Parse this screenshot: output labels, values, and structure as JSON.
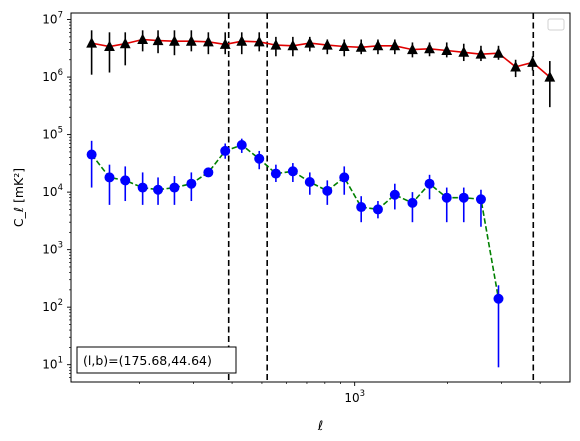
{
  "chart_data": {
    "type": "scatter",
    "title": "",
    "xlabel": "ℓ",
    "ylabel": "C_ℓ  [mK²]",
    "xscale": "log",
    "yscale": "log",
    "xlim": [
      120,
      5000
    ],
    "ylim": [
      5,
      13000000
    ],
    "x_ticks": [
      {
        "value": 1000,
        "label_base": "10",
        "label_exp": "3"
      }
    ],
    "y_ticks": [
      {
        "value": 10,
        "label_base": "10",
        "label_exp": "1"
      },
      {
        "value": 100,
        "label_base": "10",
        "label_exp": "2"
      },
      {
        "value": 1000,
        "label_base": "10",
        "label_exp": "3"
      },
      {
        "value": 10000,
        "label_base": "10",
        "label_exp": "4"
      },
      {
        "value": 100000,
        "label_base": "10",
        "label_exp": "5"
      },
      {
        "value": 1000000,
        "label_base": "10",
        "label_exp": "6"
      },
      {
        "value": 10000000,
        "label_base": "10",
        "label_exp": "7"
      }
    ],
    "vlines": [
      390,
      520,
      3800
    ],
    "legend": {
      "location": "top-right",
      "entries": []
    },
    "annotation": "(l,b)=(175.68,44.64)",
    "series": [
      {
        "marker": "triangle",
        "marker_color": "#000000",
        "errorbar_color": "#000000",
        "line_color": "#e00000",
        "line_style": "solid",
        "x": [
          140,
          160,
          180,
          205,
          230,
          260,
          295,
          335,
          380,
          430,
          490,
          555,
          630,
          715,
          815,
          925,
          1050,
          1190,
          1350,
          1540,
          1750,
          1990,
          2260,
          2570,
          2930,
          3330,
          3780,
          4300,
          4880
        ],
        "y": [
          3900000,
          3400000,
          3800000,
          4500000,
          4300000,
          4200000,
          4200000,
          4100000,
          3700000,
          4200000,
          4100000,
          3600000,
          3500000,
          3900000,
          3600000,
          3400000,
          3300000,
          3500000,
          3500000,
          3000000,
          3100000,
          2900000,
          2700000,
          2500000,
          2600000,
          1500000,
          1800000,
          1000000,
          0
        ],
        "yerr_low": [
          1100000,
          1200000,
          1600000,
          2800000,
          2600000,
          2400000,
          2800000,
          2500000,
          2500000,
          2500000,
          2800000,
          2300000,
          2300000,
          2800000,
          2500000,
          2300000,
          2500000,
          2500000,
          2500000,
          2200000,
          2300000,
          2200000,
          1900000,
          1900000,
          2000000,
          1000000,
          1300000,
          300000,
          0
        ],
        "yerr_high": [
          6500000,
          6000000,
          6000000,
          6500000,
          6500000,
          6500000,
          6500000,
          6000000,
          6000000,
          6000000,
          6000000,
          5000000,
          5000000,
          5000000,
          4500000,
          4500000,
          4500000,
          4500000,
          4500000,
          4000000,
          4000000,
          4000000,
          3800000,
          3500000,
          3500000,
          2000000,
          2300000,
          1900000,
          0
        ]
      },
      {
        "marker": "circle",
        "marker_color": "#0000ff",
        "errorbar_color": "#0000ff",
        "line_color": "#008000",
        "line_style": "dashed",
        "x": [
          140,
          160,
          180,
          205,
          230,
          260,
          295,
          335,
          380,
          430,
          490,
          555,
          630,
          715,
          815,
          925,
          1050,
          1190,
          1350,
          1540,
          1750,
          1990,
          2260,
          2570,
          2930,
          3330,
          3780,
          4300,
          4880
        ],
        "y": [
          45000,
          18000,
          16000,
          12000,
          11000,
          12000,
          14000,
          22000,
          52000,
          66000,
          38000,
          21000,
          23000,
          15000,
          10500,
          18000,
          5500,
          5000,
          9000,
          6500,
          14000,
          8000,
          8000,
          7500,
          140,
          0,
          0,
          0,
          0
        ],
        "yerr_low": [
          12000,
          6000,
          7000,
          6000,
          6000,
          6000,
          7000,
          0,
          38000,
          48000,
          25000,
          15000,
          15000,
          9000,
          6000,
          9000,
          3000,
          3500,
          5000,
          3000,
          7500,
          3000,
          3000,
          2500,
          9,
          0,
          0,
          0,
          0
        ],
        "yerr_high": [
          78000,
          30000,
          28000,
          22000,
          18000,
          19000,
          22000,
          0,
          70000,
          85000,
          52000,
          30000,
          32000,
          22000,
          16000,
          28000,
          8500,
          7000,
          14000,
          10000,
          20000,
          12000,
          12000,
          11000,
          240,
          0,
          0,
          0,
          0
        ]
      }
    ]
  }
}
